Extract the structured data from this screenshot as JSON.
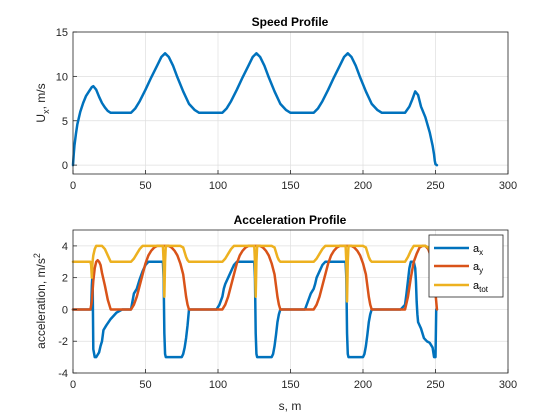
{
  "colors": {
    "ax": "#0072BD",
    "ay": "#D95319",
    "atot": "#EDB120",
    "grid": "#dfdfdf",
    "axis": "#262626"
  },
  "chart_data": [
    {
      "type": "line",
      "title": "Speed Profile",
      "xlabel": "",
      "ylabel": {
        "main": "U",
        "sub": "x",
        "rest": ", m/s"
      },
      "xlim": [
        0,
        300
      ],
      "ylim": [
        -1,
        15
      ],
      "xticks": [
        "0",
        "50",
        "100",
        "150",
        "200",
        "250",
        "300"
      ],
      "yticks": [
        "0",
        "5",
        "10",
        "15"
      ],
      "grid": true,
      "series": [
        {
          "color": "#0072BD",
          "x": [
            0,
            0.5,
            1,
            2,
            3,
            5,
            7,
            9,
            11,
            13,
            14,
            16,
            18,
            20,
            22,
            24,
            26,
            40,
            43,
            46,
            50,
            54,
            58,
            61,
            63.5,
            66,
            69,
            72,
            76,
            80,
            84,
            87,
            89,
            103,
            106,
            109,
            113,
            117,
            121,
            124,
            126.5,
            129,
            132,
            135,
            139,
            143,
            147,
            150,
            152,
            166,
            169,
            172,
            176,
            180,
            184,
            187,
            189.5,
            192,
            195,
            198,
            202,
            206,
            210,
            213,
            215,
            229,
            232,
            234,
            236,
            238,
            240,
            243,
            246,
            248,
            249,
            249.5,
            250,
            250.5,
            251
          ],
          "values": [
            0,
            1.2,
            2.2,
            3.5,
            4.6,
            6.0,
            7.0,
            7.8,
            8.3,
            8.8,
            8.9,
            8.5,
            7.7,
            7.0,
            6.5,
            6.1,
            5.9,
            5.9,
            6.4,
            7.2,
            8.5,
            9.9,
            11.2,
            12.2,
            12.6,
            12.2,
            11.2,
            9.9,
            8.3,
            6.9,
            6.2,
            5.9,
            5.9,
            5.9,
            6.4,
            7.2,
            8.5,
            9.9,
            11.2,
            12.2,
            12.6,
            12.2,
            11.2,
            9.9,
            8.3,
            6.9,
            6.2,
            5.9,
            5.9,
            5.9,
            6.4,
            7.2,
            8.5,
            9.9,
            11.2,
            12.2,
            12.6,
            12.2,
            11.2,
            9.9,
            8.3,
            6.9,
            6.2,
            5.9,
            5.9,
            5.9,
            6.6,
            7.4,
            8.3,
            7.9,
            6.6,
            5.4,
            3.7,
            2.2,
            1.2,
            0.5,
            0.1,
            0.05,
            0
          ]
        }
      ]
    },
    {
      "type": "line",
      "title": "Acceleration Profile",
      "xlabel": "s, m",
      "ylabel": {
        "main": "acceleration, m/s",
        "sup": "2"
      },
      "xlim": [
        0,
        300
      ],
      "ylim": [
        -4,
        5
      ],
      "xticks": [
        "0",
        "50",
        "100",
        "150",
        "200",
        "250",
        "300"
      ],
      "yticks": [
        "-4",
        "-2",
        "0",
        "2",
        "4"
      ],
      "grid": true,
      "legend": {
        "placement": "top-right"
      },
      "series": [
        {
          "name": {
            "main": "a",
            "sub": "x"
          },
          "color": "#0072BD",
          "x": [
            0,
            12.5,
            13,
            13.5,
            14,
            15,
            16,
            18,
            19,
            20,
            21,
            23,
            26,
            30,
            34,
            36,
            38,
            40,
            41,
            42,
            44,
            46,
            48,
            50,
            52,
            54,
            56,
            58,
            60,
            62,
            62.5,
            63,
            63.5,
            64,
            66,
            68,
            70,
            72,
            74,
            75,
            76,
            77,
            78,
            79,
            80,
            90,
            95,
            99,
            101,
            103,
            104,
            105,
            107,
            109,
            111,
            113,
            115,
            117,
            119,
            121,
            123,
            125,
            125.5,
            126,
            126.5,
            127,
            129,
            131,
            133,
            135,
            137,
            138,
            139,
            140,
            141,
            142,
            143,
            155,
            160,
            162,
            164,
            166,
            167,
            168,
            170,
            172,
            174,
            176,
            178,
            180,
            182,
            184,
            186,
            188,
            188.5,
            189,
            189.5,
            190,
            192,
            194,
            196,
            198,
            200,
            201,
            202,
            203,
            204,
            205,
            206,
            220,
            224,
            226,
            229,
            230,
            231,
            232,
            233,
            234,
            235,
            236,
            236.5,
            237,
            237.5,
            238,
            240,
            242,
            244,
            246,
            248,
            248.5,
            249,
            250,
            250.5,
            251
          ],
          "values": [
            0,
            0,
            1.5,
            2.3,
            -2.5,
            -3.0,
            -3.0,
            -2.7,
            -2.3,
            -2.0,
            -1.3,
            -1.0,
            -0.6,
            -0.2,
            0,
            0,
            0,
            0,
            0.5,
            1.0,
            1.3,
            1.9,
            2.4,
            2.8,
            3.0,
            3.0,
            3.0,
            3.0,
            3.0,
            3.0,
            2.0,
            -1.5,
            -2.8,
            -3.0,
            -3.0,
            -3.0,
            -3.0,
            -3.0,
            -3.0,
            -3.0,
            -2.8,
            -2.4,
            -1.8,
            -1.0,
            0,
            0,
            0,
            0,
            0.3,
            0.8,
            1.3,
            1.6,
            2.0,
            2.4,
            2.8,
            3.0,
            3.0,
            3.0,
            3.0,
            3.0,
            3.0,
            3.0,
            2.0,
            -1.5,
            -2.8,
            -3.0,
            -3.0,
            -3.0,
            -3.0,
            -3.0,
            -3.0,
            -2.8,
            -2.3,
            -1.6,
            -0.8,
            -0.3,
            0,
            0,
            0,
            0.5,
            1.0,
            1.3,
            1.6,
            2.0,
            2.4,
            2.8,
            3.0,
            3.0,
            3.0,
            3.0,
            3.0,
            3.0,
            3.0,
            3.0,
            2.0,
            -1.5,
            -2.8,
            -3.0,
            -3.0,
            -3.0,
            -3.0,
            -3.0,
            -3.0,
            -2.8,
            -2.3,
            -1.6,
            -0.8,
            -0.3,
            0,
            0,
            0,
            0,
            0.3,
            1.0,
            1.8,
            2.6,
            3.0,
            3.0,
            3.0,
            2.6,
            1.8,
            0.5,
            -0.3,
            -0.8,
            -1.2,
            -1.8,
            -2.0,
            -2.1,
            -2.4,
            -2.7,
            -3.0,
            -3.0,
            0,
            0
          ]
        },
        {
          "name": {
            "main": "a",
            "sub": "y"
          },
          "color": "#D95319",
          "x": [
            0,
            12,
            13,
            14,
            15,
            16,
            17,
            18,
            19,
            20,
            22,
            24,
            26,
            40,
            42,
            44,
            46,
            48,
            50,
            52,
            54,
            56,
            58,
            60,
            62,
            64,
            66,
            68,
            70,
            72,
            74,
            76,
            77,
            78,
            79,
            80,
            103,
            105,
            107,
            109,
            111,
            113,
            115,
            117,
            119,
            121,
            123,
            125,
            127,
            129,
            131,
            133,
            135,
            137,
            139,
            140,
            141,
            142,
            143,
            166,
            168,
            170,
            172,
            174,
            176,
            178,
            180,
            182,
            184,
            186,
            188,
            190,
            192,
            194,
            196,
            198,
            200,
            202,
            203,
            204,
            205,
            206,
            229,
            231,
            233,
            235,
            237,
            239,
            241,
            243,
            245,
            247,
            249,
            250,
            251
          ],
          "values": [
            0,
            0,
            0.5,
            1.8,
            2.6,
            3.0,
            3.1,
            3.0,
            2.8,
            2.3,
            1.5,
            0.6,
            0,
            0,
            0.3,
            0.8,
            1.5,
            2.2,
            2.9,
            3.4,
            3.7,
            3.9,
            4.0,
            4.0,
            4.0,
            4.0,
            4.0,
            3.9,
            3.7,
            3.4,
            2.9,
            2.2,
            1.5,
            0.8,
            0.3,
            0,
            0,
            0.3,
            0.8,
            1.5,
            2.2,
            2.9,
            3.4,
            3.7,
            3.9,
            4.0,
            4.0,
            4.0,
            4.0,
            4.0,
            3.9,
            3.7,
            3.4,
            2.9,
            2.2,
            1.5,
            0.8,
            0.3,
            0,
            0,
            0.3,
            0.8,
            1.5,
            2.2,
            2.9,
            3.4,
            3.7,
            3.9,
            4.0,
            4.0,
            4.0,
            4.0,
            4.0,
            3.9,
            3.7,
            3.4,
            2.9,
            2.2,
            1.5,
            0.8,
            0.3,
            0,
            0,
            0.8,
            2.0,
            3.0,
            3.5,
            3.9,
            4.0,
            4.0,
            3.8,
            3.3,
            2.5,
            1.0,
            0
          ]
        },
        {
          "name": {
            "main": "a",
            "sub": "tot"
          },
          "color": "#EDB120",
          "x": [
            0,
            12,
            12.5,
            13,
            13.5,
            14,
            15,
            16,
            17,
            18,
            19,
            20,
            22,
            24,
            26,
            40,
            42,
            44,
            46,
            48,
            50,
            52,
            54,
            60,
            61,
            62,
            62.5,
            63,
            63.5,
            64,
            66,
            68,
            70,
            72,
            74,
            76,
            77,
            78,
            79,
            80,
            103,
            105,
            107,
            109,
            111,
            113,
            115,
            117,
            123,
            124,
            125,
            125.5,
            126,
            126.5,
            127,
            129,
            131,
            133,
            135,
            137,
            139,
            140,
            141,
            142,
            143,
            166,
            168,
            170,
            172,
            174,
            176,
            178,
            180,
            186,
            187,
            188,
            188.5,
            189,
            189.5,
            190,
            192,
            194,
            196,
            198,
            200,
            202,
            203,
            204,
            205,
            206,
            229,
            231,
            233,
            235,
            237,
            239,
            243,
            245,
            247,
            249,
            250,
            251
          ],
          "values": [
            3.0,
            3.0,
            2.8,
            2.0,
            3.0,
            3.4,
            3.8,
            4.0,
            4.0,
            4.0,
            4.0,
            4.0,
            3.8,
            3.4,
            3.0,
            3.0,
            3.2,
            3.5,
            3.8,
            4.0,
            4.0,
            4.0,
            4.0,
            4.0,
            4.0,
            4.0,
            3.0,
            0.8,
            3.0,
            4.0,
            4.0,
            4.0,
            4.0,
            4.0,
            4.0,
            3.9,
            3.6,
            3.3,
            3.1,
            3.0,
            3.0,
            3.2,
            3.5,
            3.8,
            4.0,
            4.0,
            4.0,
            4.0,
            4.0,
            4.0,
            4.0,
            3.0,
            0.8,
            3.0,
            4.0,
            4.0,
            4.0,
            4.0,
            4.0,
            4.0,
            3.9,
            3.6,
            3.3,
            3.1,
            3.0,
            3.0,
            3.2,
            3.5,
            3.8,
            4.0,
            4.0,
            4.0,
            4.0,
            4.0,
            4.0,
            4.0,
            3.0,
            0.5,
            3.0,
            4.0,
            4.0,
            4.0,
            4.0,
            4.0,
            4.0,
            3.9,
            3.6,
            3.3,
            3.1,
            3.0,
            3.0,
            3.3,
            3.7,
            4.0,
            4.0,
            4.0,
            4.0,
            3.9,
            3.6,
            3.2,
            3.0,
            3.0
          ]
        }
      ]
    }
  ]
}
